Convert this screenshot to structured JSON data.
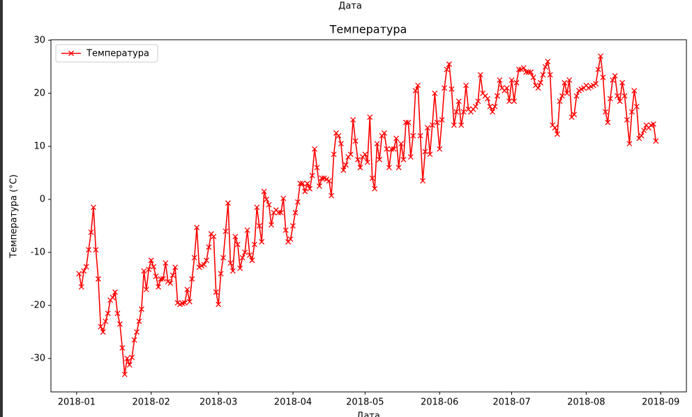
{
  "chart_data": {
    "type": "line",
    "title": "Температура",
    "xlabel": "Дата",
    "ylabel": "Температура (°C)",
    "legend": "upper left",
    "x": [
      1,
      2,
      3,
      4,
      5,
      6,
      7,
      8,
      9,
      10,
      11,
      12,
      13,
      14,
      15,
      16,
      17,
      18,
      19,
      20,
      21,
      22,
      23,
      24,
      25,
      26,
      27,
      28,
      29,
      30,
      31,
      32,
      33,
      34,
      35,
      36,
      37,
      38,
      39,
      40,
      41,
      42,
      43,
      44,
      45,
      46,
      47,
      48,
      49,
      50,
      51,
      52,
      53,
      54,
      55,
      56,
      57,
      58,
      59,
      60,
      61,
      62,
      63,
      64,
      65,
      66,
      67,
      68,
      69,
      70,
      71,
      72,
      73,
      74,
      75,
      76,
      77,
      78,
      79,
      80,
      81,
      82,
      83,
      84,
      85,
      86,
      87,
      88,
      89,
      90,
      91,
      92,
      93,
      94,
      95,
      96,
      97,
      98,
      99,
      100,
      101,
      102,
      103,
      104,
      105,
      106,
      107,
      108,
      109,
      110,
      111,
      112,
      113,
      114,
      115,
      116,
      117,
      118,
      119,
      120,
      121,
      122,
      123,
      124,
      125,
      126,
      127,
      128,
      129,
      130,
      131,
      132,
      133,
      134,
      135,
      136,
      137,
      138,
      139,
      140,
      141,
      142,
      143,
      144,
      145,
      146,
      147,
      148,
      149,
      150,
      151,
      152,
      153,
      154,
      155,
      156,
      157,
      158,
      159,
      160,
      161,
      162,
      163,
      164,
      165,
      166,
      167,
      168,
      169,
      170,
      171,
      172,
      173,
      174,
      175,
      176,
      177,
      178,
      179,
      180,
      181,
      182,
      183,
      184,
      185,
      186,
      187,
      188,
      189,
      190,
      191,
      192,
      193,
      194,
      195,
      196,
      197,
      198,
      199,
      200,
      201,
      202,
      203,
      204,
      205,
      206,
      207,
      208,
      209,
      210,
      211,
      212,
      213,
      214,
      215,
      216,
      217,
      218,
      219,
      220,
      221,
      222,
      223,
      224,
      225,
      226,
      227,
      228,
      229,
      230,
      231,
      232,
      233,
      234,
      235,
      236,
      237,
      238,
      239,
      240,
      241
    ],
    "series": [
      {
        "name": "Температура",
        "color": "#ff0000",
        "marker": "x",
        "values": [
          -14,
          -16.5,
          -13.5,
          -12.7,
          -9.5,
          -6.2,
          -1.5,
          -9.5,
          -15,
          -24,
          -25,
          -23,
          -21.5,
          -19,
          -18.5,
          -17.5,
          -21.5,
          -23.5,
          -28,
          -33,
          -30,
          -31.2,
          -29.8,
          -26.5,
          -25,
          -23,
          -20.7,
          -13.5,
          -17,
          -13.2,
          -11.5,
          -12.7,
          -14.5,
          -16.5,
          -15,
          -15,
          -12,
          -15.5,
          -15.8,
          -14.3,
          -12.8,
          -19.5,
          -19.8,
          -19.6,
          -19.5,
          -17,
          -19.3,
          -15,
          -11,
          -5.3,
          -12.8,
          -12.5,
          -12.3,
          -11.5,
          -9,
          -6.5,
          -7,
          -17.5,
          -19.8,
          -14,
          -11,
          -6,
          -0.7,
          -12,
          -13.5,
          -7,
          -8.5,
          -13,
          -11,
          -10,
          -5.8,
          -10.5,
          -11.5,
          -8.5,
          -1.5,
          -5,
          -8,
          1.5,
          0,
          -1,
          -4.8,
          -2.5,
          -2,
          -2.5,
          -2.5,
          0.2,
          -5.8,
          -8,
          -7.5,
          -5,
          -2.5,
          -0.5,
          3,
          3,
          1.5,
          3,
          2,
          4.5,
          9.5,
          6,
          2.5,
          4,
          4,
          3.8,
          3.5,
          0.7,
          8.5,
          12.5,
          12,
          10.5,
          5.5,
          6.5,
          8,
          8.5,
          15,
          11,
          7.5,
          6,
          8,
          8.5,
          7,
          15.5,
          4,
          2,
          10.5,
          7.5,
          12,
          12.5,
          9.5,
          6,
          9.5,
          9.5,
          11.5,
          6,
          10.5,
          7.5,
          14.5,
          14.5,
          8,
          12,
          20.5,
          21.5,
          12,
          3.5,
          9,
          13.5,
          8.5,
          14,
          20,
          14.5,
          9.5,
          15,
          21,
          24.5,
          25.5,
          20.8,
          14,
          16.5,
          18.5,
          14,
          16.5,
          21.5,
          17,
          16.5,
          17,
          17.5,
          18.5,
          23.5,
          20,
          19.5,
          19,
          17.5,
          16.5,
          17.5,
          19.5,
          22.5,
          21,
          20.5,
          21,
          18.5,
          22.5,
          18.5,
          22,
          24.5,
          24.5,
          24.8,
          24,
          24,
          24,
          23,
          21.5,
          21,
          22,
          23.5,
          25,
          26,
          23.5,
          14,
          13.5,
          12.3,
          18.5,
          19.5,
          22,
          20,
          22.5,
          15.5,
          16,
          19.5,
          20.5,
          20.8,
          21,
          21.5,
          21,
          21.3,
          21.5,
          21.8,
          24.5,
          27,
          23,
          16.5,
          14.5,
          19,
          22.5,
          23.3,
          19.5,
          18.5,
          22,
          19.5,
          15,
          10.5,
          16.5,
          20.5,
          17.5,
          11.5,
          12,
          13,
          14,
          13.5,
          14,
          14.2,
          11
        ]
      }
    ],
    "xlim": [
      -10.7,
      253.7
    ],
    "xticks": [
      {
        "value": 0,
        "label": "2018-01"
      },
      {
        "value": 31,
        "label": "2018-02"
      },
      {
        "value": 59,
        "label": "2018-03"
      },
      {
        "value": 90,
        "label": "2018-04"
      },
      {
        "value": 120,
        "label": "2018-05"
      },
      {
        "value": 151,
        "label": "2018-06"
      },
      {
        "value": 181,
        "label": "2018-07"
      },
      {
        "value": 212,
        "label": "2018-08"
      },
      {
        "value": 243,
        "label": "2018-09"
      }
    ],
    "ylim": [
      -36.3,
      30.1
    ],
    "yticks": [
      -30,
      -20,
      -10,
      0,
      10,
      20,
      30
    ],
    "grid": false
  }
}
